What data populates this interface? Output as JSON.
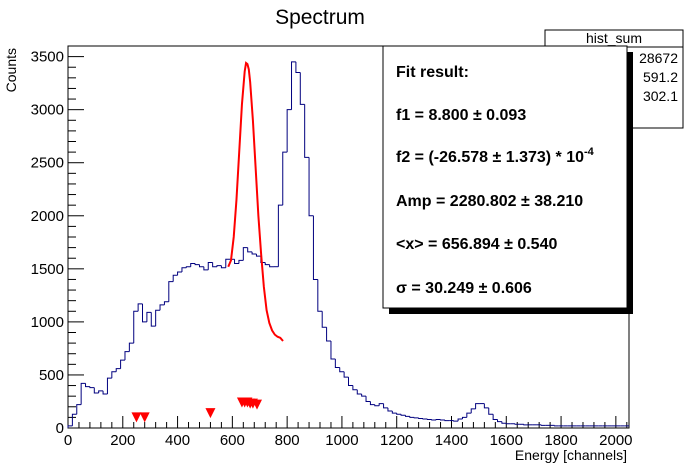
{
  "title": "Spectrum",
  "colors": {
    "histogram": "#00007f",
    "fit": "#ff0000",
    "markers": "#ff0000",
    "frame": "#000000"
  },
  "stats_box": {
    "name": "hist_sum",
    "values": [
      "28672",
      "591.2",
      "302.1"
    ]
  },
  "fit_box": {
    "heading": "Fit result:",
    "f1": "f1 = 8.800 ± 0.093",
    "f2_main": "f2 = (-26.578 ± 1.373) * 10",
    "f2_exp": "-4",
    "amp": "Amp = 2280.802 ± 38.210",
    "mean": "<x> = 656.894 ± 0.540",
    "sigma": "σ = 30.249 ± 0.606"
  },
  "chart_data": {
    "type": "histogram",
    "title": "Spectrum",
    "xlabel": "Energy [channels]",
    "ylabel": "Counts",
    "xlim": [
      0,
      2048
    ],
    "ylim": [
      0,
      3600
    ],
    "xticks": [
      0,
      200,
      400,
      600,
      800,
      1000,
      1200,
      1400,
      1600,
      1800,
      2000
    ],
    "yticks": [
      0,
      500,
      1000,
      1500,
      2000,
      2500,
      3000,
      3500
    ],
    "bin_width": 16,
    "bin_start": 0,
    "counts": [
      20,
      130,
      220,
      420,
      390,
      380,
      330,
      350,
      320,
      470,
      530,
      560,
      640,
      720,
      800,
      1100,
      1170,
      1000,
      1090,
      960,
      1110,
      1160,
      1190,
      1380,
      1440,
      1470,
      1510,
      1520,
      1550,
      1540,
      1520,
      1490,
      1560,
      1520,
      1530,
      1510,
      1590,
      1590,
      1550,
      1580,
      1700,
      1660,
      1640,
      1620,
      1560,
      1540,
      1520,
      1520,
      2100,
      2600,
      3000,
      3450,
      3350,
      3050,
      2550,
      2000,
      1400,
      1100,
      950,
      820,
      650,
      570,
      530,
      480,
      400,
      360,
      320,
      300,
      250,
      220,
      210,
      230,
      190,
      160,
      140,
      130,
      120,
      110,
      100,
      95,
      90,
      85,
      80,
      75,
      80,
      75,
      70,
      70,
      65,
      85,
      100,
      140,
      180,
      230,
      230,
      190,
      130,
      80,
      60,
      45,
      40,
      40,
      35,
      35,
      30,
      30,
      30,
      30,
      25,
      25,
      25,
      20,
      20,
      20,
      20,
      20,
      20,
      20,
      20,
      20,
      20,
      20,
      20,
      20,
      20,
      20,
      20,
      20
    ],
    "fit_curve": {
      "x": [
        585,
        595,
        605,
        615,
        625,
        635,
        645,
        650,
        655,
        660,
        665,
        675,
        685,
        695,
        705,
        715,
        725,
        735,
        745,
        755,
        765,
        775,
        785
      ],
      "y": [
        1520,
        1580,
        1800,
        2150,
        2600,
        3050,
        3360,
        3440,
        3430,
        3380,
        3260,
        2900,
        2450,
        2000,
        1640,
        1330,
        1110,
        990,
        920,
        880,
        860,
        850,
        820
      ]
    },
    "peak_markers": {
      "x": [
        250,
        280,
        520,
        635,
        645,
        655,
        665,
        675,
        690
      ],
      "y": [
        100,
        100,
        140,
        240,
        240,
        240,
        230,
        230,
        220
      ]
    }
  }
}
